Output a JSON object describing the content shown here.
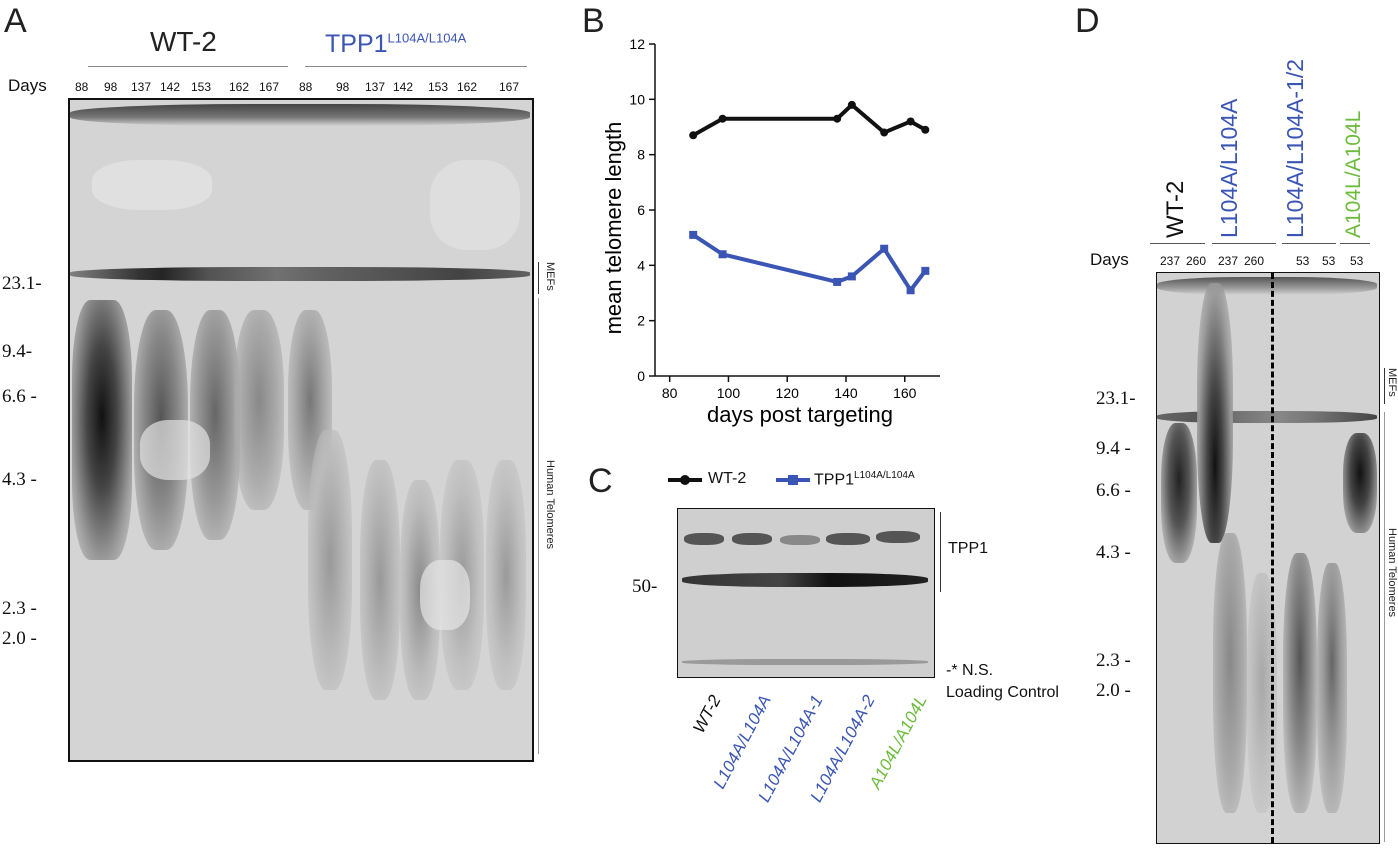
{
  "colors": {
    "wt": "#111111",
    "mut": "#3a55b4",
    "rescue": "#6cbb3c"
  },
  "panelA": {
    "letter": "A",
    "days_label": "Days",
    "group_wt": "WT-2",
    "group_mut_base": "TPP1",
    "group_mut_sup": "L104A/L104A",
    "days_wt": [
      "88",
      "98",
      "137",
      "142",
      "153",
      "162",
      "167"
    ],
    "days_mut": [
      "88",
      "98",
      "137",
      "142",
      "153",
      "162",
      "167"
    ],
    "markers": [
      "23.1-",
      "9.4-",
      "6.6 -",
      "4.3 -",
      "2.3 -",
      "2.0 -"
    ],
    "side_mefs": "MEFs",
    "side_human": "Human Telomeres"
  },
  "panelB": {
    "letter": "B"
  },
  "chart_data": {
    "type": "line",
    "xlabel": "days post targeting",
    "ylabel": "mean telomere length",
    "xlim": [
      75,
      172
    ],
    "ylim": [
      0,
      12
    ],
    "xticks": [
      80,
      100,
      120,
      140,
      160
    ],
    "yticks": [
      0,
      2,
      4,
      6,
      8,
      10,
      12
    ],
    "grid": false,
    "legend_position": "bottom",
    "series": [
      {
        "name": "WT-2",
        "color": "#111111",
        "x": [
          88,
          98,
          137,
          142,
          153,
          162,
          167
        ],
        "y": [
          8.7,
          9.3,
          9.3,
          9.8,
          8.8,
          9.2,
          8.9
        ]
      },
      {
        "name": "TPP1L104A/L104A",
        "color": "#3a55b4",
        "x": [
          88,
          98,
          137,
          142,
          153,
          162,
          167
        ],
        "y": [
          5.1,
          4.4,
          3.4,
          3.6,
          4.6,
          3.1,
          3.8
        ]
      }
    ],
    "legend": {
      "wt": "WT-2",
      "mut_base": "TPP1",
      "mut_sup": "L104A/L104A"
    }
  },
  "panelC": {
    "letter": "C",
    "marker": "50-",
    "tpp1": "TPP1",
    "ns": "-* N.S.",
    "loading": "Loading Control",
    "lanes": [
      "WT-2",
      "L104A/L104A",
      "L104A/L104A-1",
      "L104A/L104A-2",
      "A104L/A104L"
    ]
  },
  "panelD": {
    "letter": "D",
    "days_label": "Days",
    "group_labels": [
      "WT-2",
      "L104A/L104A",
      "L104A/L104A-1/2",
      "A104L/A104L"
    ],
    "days": [
      "237",
      "260",
      "237",
      "260",
      "53",
      "53",
      "53"
    ],
    "markers": [
      "23.1-",
      "9.4 -",
      "6.6 -",
      "4.3 -",
      "2.3 -",
      "2.0 -"
    ],
    "side_mefs": "MEFs",
    "side_human": "Human Telomeres"
  }
}
